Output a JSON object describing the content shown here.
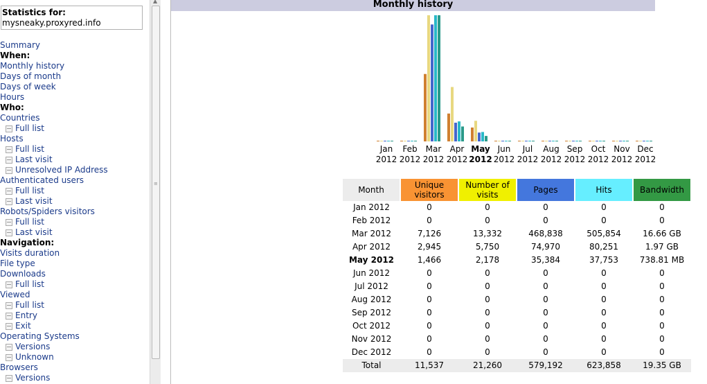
{
  "sidebar": {
    "stats_label": "Statistics for:",
    "site": "mysneaky.proxyred.info",
    "items": [
      {
        "label": "Summary",
        "kind": "link"
      },
      {
        "label": "When:",
        "kind": "head"
      },
      {
        "label": "Monthly history",
        "kind": "link"
      },
      {
        "label": "Days of month",
        "kind": "link"
      },
      {
        "label": "Days of week",
        "kind": "link"
      },
      {
        "label": "Hours",
        "kind": "link"
      },
      {
        "label": "Who:",
        "kind": "head"
      },
      {
        "label": "Countries",
        "kind": "link"
      },
      {
        "label": "Full list",
        "kind": "sub"
      },
      {
        "label": "Hosts",
        "kind": "link"
      },
      {
        "label": "Full list",
        "kind": "sub"
      },
      {
        "label": "Last visit",
        "kind": "sub"
      },
      {
        "label": "Unresolved IP Address",
        "kind": "sub"
      },
      {
        "label": "Authenticated users",
        "kind": "link"
      },
      {
        "label": "Full list",
        "kind": "sub"
      },
      {
        "label": "Last visit",
        "kind": "sub"
      },
      {
        "label": "Robots/Spiders visitors",
        "kind": "link"
      },
      {
        "label": "Full list",
        "kind": "sub"
      },
      {
        "label": "Last visit",
        "kind": "sub"
      },
      {
        "label": "Navigation:",
        "kind": "head"
      },
      {
        "label": "Visits duration",
        "kind": "link"
      },
      {
        "label": "File type",
        "kind": "link"
      },
      {
        "label": "Downloads",
        "kind": "link"
      },
      {
        "label": "Full list",
        "kind": "sub"
      },
      {
        "label": "Viewed",
        "kind": "link"
      },
      {
        "label": "Full list",
        "kind": "sub"
      },
      {
        "label": "Entry",
        "kind": "sub"
      },
      {
        "label": "Exit",
        "kind": "sub"
      },
      {
        "label": "Operating Systems",
        "kind": "link"
      },
      {
        "label": "Versions",
        "kind": "sub"
      },
      {
        "label": "Unknown",
        "kind": "sub"
      },
      {
        "label": "Browsers",
        "kind": "link"
      },
      {
        "label": "Versions",
        "kind": "sub"
      }
    ]
  },
  "main": {
    "title": "Monthly history"
  },
  "colors": {
    "unique": "#f99333",
    "visits": "#f0f000",
    "pages": "#4477dd",
    "hits": "#66eeff",
    "bandwidth": "#339944"
  },
  "chart_data": {
    "type": "bar",
    "categories": [
      {
        "month": "Jan",
        "year": "2012"
      },
      {
        "month": "Feb",
        "year": "2012"
      },
      {
        "month": "Mar",
        "year": "2012"
      },
      {
        "month": "Apr",
        "year": "2012"
      },
      {
        "month": "May",
        "year": "2012",
        "current": true
      },
      {
        "month": "Jun",
        "year": "2012"
      },
      {
        "month": "Jul",
        "year": "2012"
      },
      {
        "month": "Aug",
        "year": "2012"
      },
      {
        "month": "Sep",
        "year": "2012"
      },
      {
        "month": "Oct",
        "year": "2012"
      },
      {
        "month": "Nov",
        "year": "2012"
      },
      {
        "month": "Dec",
        "year": "2012"
      }
    ],
    "series": [
      {
        "name": "Unique visitors",
        "values": [
          0,
          0,
          7126,
          2945,
          1466,
          0,
          0,
          0,
          0,
          0,
          0,
          0
        ]
      },
      {
        "name": "Number of visits",
        "values": [
          0,
          0,
          13332,
          5750,
          2178,
          0,
          0,
          0,
          0,
          0,
          0,
          0
        ]
      },
      {
        "name": "Pages",
        "values": [
          0,
          0,
          468838,
          74970,
          35384,
          0,
          0,
          0,
          0,
          0,
          0,
          0
        ]
      },
      {
        "name": "Hits",
        "values": [
          0,
          0,
          505854,
          80251,
          37753,
          0,
          0,
          0,
          0,
          0,
          0,
          0
        ]
      },
      {
        "name": "Bandwidth",
        "values_mb": [
          0,
          0,
          17059.84,
          2017.28,
          738.81,
          0,
          0,
          0,
          0,
          0,
          0,
          0
        ]
      }
    ]
  },
  "table": {
    "headers": {
      "month": "Month",
      "unique": "Unique visitors",
      "visits": "Number of visits",
      "pages": "Pages",
      "hits": "Hits",
      "bandwidth": "Bandwidth"
    },
    "rows": [
      {
        "month": "Jan 2012",
        "unique": "0",
        "visits": "0",
        "pages": "0",
        "hits": "0",
        "bandwidth": "0"
      },
      {
        "month": "Feb 2012",
        "unique": "0",
        "visits": "0",
        "pages": "0",
        "hits": "0",
        "bandwidth": "0"
      },
      {
        "month": "Mar 2012",
        "unique": "7,126",
        "visits": "13,332",
        "pages": "468,838",
        "hits": "505,854",
        "bandwidth": "16.66 GB"
      },
      {
        "month": "Apr 2012",
        "unique": "2,945",
        "visits": "5,750",
        "pages": "74,970",
        "hits": "80,251",
        "bandwidth": "1.97 GB"
      },
      {
        "month": "May 2012",
        "unique": "1,466",
        "visits": "2,178",
        "pages": "35,384",
        "hits": "37,753",
        "bandwidth": "738.81 MB",
        "current": true
      },
      {
        "month": "Jun 2012",
        "unique": "0",
        "visits": "0",
        "pages": "0",
        "hits": "0",
        "bandwidth": "0"
      },
      {
        "month": "Jul 2012",
        "unique": "0",
        "visits": "0",
        "pages": "0",
        "hits": "0",
        "bandwidth": "0"
      },
      {
        "month": "Aug 2012",
        "unique": "0",
        "visits": "0",
        "pages": "0",
        "hits": "0",
        "bandwidth": "0"
      },
      {
        "month": "Sep 2012",
        "unique": "0",
        "visits": "0",
        "pages": "0",
        "hits": "0",
        "bandwidth": "0"
      },
      {
        "month": "Oct 2012",
        "unique": "0",
        "visits": "0",
        "pages": "0",
        "hits": "0",
        "bandwidth": "0"
      },
      {
        "month": "Nov 2012",
        "unique": "0",
        "visits": "0",
        "pages": "0",
        "hits": "0",
        "bandwidth": "0"
      },
      {
        "month": "Dec 2012",
        "unique": "0",
        "visits": "0",
        "pages": "0",
        "hits": "0",
        "bandwidth": "0"
      }
    ],
    "total": {
      "month": "Total",
      "unique": "11,537",
      "visits": "21,260",
      "pages": "579,192",
      "hits": "623,858",
      "bandwidth": "19.35 GB"
    }
  }
}
